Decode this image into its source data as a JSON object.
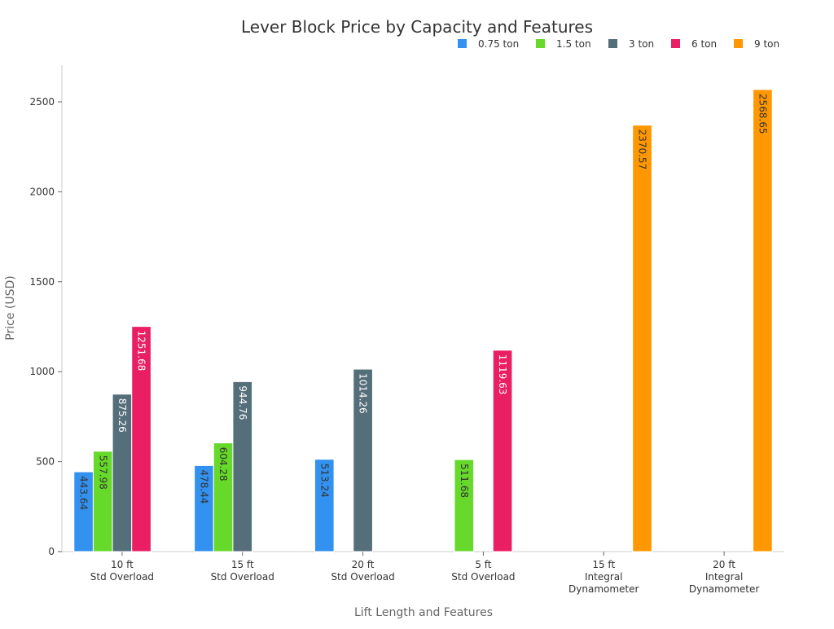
{
  "chart_data": {
    "type": "bar",
    "title": "Lever Block Price by Capacity and Features",
    "xlabel": "Lift Length and Features",
    "ylabel": "Price (USD)",
    "ylim": [
      0,
      2700
    ],
    "yticks": [
      0,
      500,
      1000,
      1500,
      2000,
      2500
    ],
    "grid": false,
    "legend_position": "top-right",
    "categories": [
      [
        "10 ft",
        "Std Overload"
      ],
      [
        "15 ft",
        "Std Overload"
      ],
      [
        "20 ft",
        "Std Overload"
      ],
      [
        "5 ft",
        "Std Overload"
      ],
      [
        "15 ft",
        "Integral",
        "Dynamometer"
      ],
      [
        "20 ft",
        "Integral",
        "Dynamometer"
      ]
    ],
    "series": [
      {
        "name": "0.75 ton",
        "color": "#3391f0",
        "label_color": "#333333",
        "values": [
          443.64,
          478.44,
          513.24,
          null,
          null,
          null
        ]
      },
      {
        "name": "1.5 ton",
        "color": "#66d92a",
        "label_color": "#333333",
        "values": [
          557.98,
          604.28,
          null,
          511.68,
          null,
          null
        ]
      },
      {
        "name": "3 ton",
        "color": "#546e7a",
        "label_color": "#ffffff",
        "values": [
          875.26,
          944.76,
          1014.26,
          null,
          null,
          null
        ]
      },
      {
        "name": "6 ton",
        "color": "#e91e63",
        "label_color": "#ffffff",
        "values": [
          1251.68,
          null,
          null,
          1119.63,
          null,
          null
        ]
      },
      {
        "name": "9 ton",
        "color": "#ff9800",
        "label_color": "#333333",
        "values": [
          null,
          null,
          null,
          null,
          2370.57,
          2568.65
        ]
      }
    ]
  }
}
